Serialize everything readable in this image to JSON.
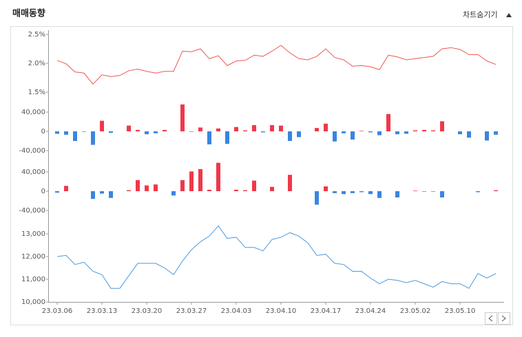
{
  "header": {
    "title": "매매동향",
    "toggle": "차트숨기기"
  },
  "chart_data": [
    {
      "type": "line",
      "color": "#f05650",
      "values": [
        2.05,
        1.99,
        1.85,
        1.83,
        1.64,
        1.8,
        1.77,
        1.79,
        1.87,
        1.9,
        1.86,
        1.83,
        1.86,
        1.86,
        2.21,
        2.2,
        2.25,
        2.08,
        2.13,
        1.96,
        2.04,
        2.05,
        2.14,
        2.12,
        2.21,
        2.31,
        2.18,
        2.08,
        2.06,
        2.12,
        2.25,
        2.1,
        2.06,
        1.95,
        1.96,
        1.94,
        1.89,
        2.14,
        2.11,
        2.06,
        2.08,
        2.1,
        2.12,
        2.25,
        2.27,
        2.24,
        2.15,
        2.15,
        2.04,
        1.98
      ],
      "ylim": [
        1.5,
        2.5
      ],
      "yticks": [
        {
          "value": 1.5,
          "label": "1.5%"
        },
        {
          "value": 2.0,
          "label": "2.0%"
        },
        {
          "value": 2.5,
          "label": "2.5%"
        }
      ]
    },
    {
      "type": "bar",
      "up_color": "#f0384a",
      "down_color": "#3a85e0",
      "values": [
        -5000,
        -7000,
        -20000,
        -1000,
        -28000,
        22000,
        -3000,
        0,
        12000,
        3000,
        -6000,
        -4000,
        3000,
        0,
        56000,
        -1000,
        8000,
        -27000,
        6000,
        -26000,
        9000,
        2000,
        13000,
        -2000,
        13000,
        12000,
        -20000,
        -12000,
        0,
        7000,
        16000,
        -21000,
        -4000,
        -17000,
        1000,
        -2000,
        -8000,
        36000,
        -6000,
        -5000,
        2000,
        3000,
        2000,
        21000,
        0,
        -6000,
        -13000,
        0,
        -19000,
        -7000
      ],
      "ylim": [
        -60000,
        60000
      ],
      "yticks": [
        {
          "value": -40000,
          "label": "-40,000"
        },
        0,
        {
          "value": 40000,
          "label": "40,000"
        }
      ]
    },
    {
      "type": "bar",
      "up_color": "#f0384a",
      "down_color": "#3a85e0",
      "values": [
        -3000,
        11000,
        0,
        0,
        -16000,
        -5000,
        -14000,
        0,
        2000,
        23000,
        12000,
        14000,
        0,
        -9000,
        23000,
        41000,
        46000,
        3000,
        59000,
        0,
        3000,
        2000,
        22000,
        0,
        9000,
        0,
        34000,
        0,
        0,
        -28000,
        10000,
        -4000,
        -6000,
        -4000,
        -2000,
        -6000,
        -14000,
        0,
        -13000,
        0,
        1000,
        -1000,
        -1000,
        -13000,
        0,
        0,
        0,
        -2000,
        0,
        2000
      ],
      "ylim": [
        -60000,
        60000
      ],
      "yticks": [
        {
          "value": -40000,
          "label": "-40,000"
        },
        0,
        {
          "value": 40000,
          "label": "40,000"
        }
      ]
    },
    {
      "type": "line",
      "color": "#4a9ae0",
      "values": [
        12000,
        12050,
        11650,
        11750,
        11350,
        11200,
        10600,
        10600,
        11150,
        11700,
        11700,
        11700,
        11500,
        11200,
        11800,
        12300,
        12650,
        12900,
        13350,
        12800,
        12850,
        12400,
        12400,
        12250,
        12750,
        12850,
        13050,
        12900,
        12600,
        12050,
        12100,
        11700,
        11650,
        11350,
        11350,
        11050,
        10800,
        11000,
        10950,
        10850,
        10950,
        10800,
        10650,
        10900,
        10800,
        10800,
        10600,
        11250,
        11050,
        11250
      ],
      "ylim": [
        10000,
        13500
      ],
      "yticks": [
        {
          "value": 10000,
          "label": "10,000"
        },
        {
          "value": 11000,
          "label": "11,000"
        },
        {
          "value": 12000,
          "label": "12,000"
        },
        {
          "value": 13000,
          "label": "13,000"
        }
      ],
      "categories": [
        "23.03.06",
        null,
        null,
        null,
        null,
        "23.03.13",
        null,
        null,
        null,
        null,
        "23.03.20",
        null,
        null,
        null,
        null,
        "23.03.27",
        null,
        null,
        null,
        null,
        "23.04.03",
        null,
        null,
        null,
        null,
        "23.04.10",
        null,
        null,
        null,
        null,
        "23.04.17",
        null,
        null,
        null,
        null,
        "23.04.24",
        null,
        null,
        null,
        null,
        "23.05.02",
        null,
        null,
        null,
        null,
        "23.05.10",
        null,
        null,
        null,
        null
      ]
    }
  ]
}
